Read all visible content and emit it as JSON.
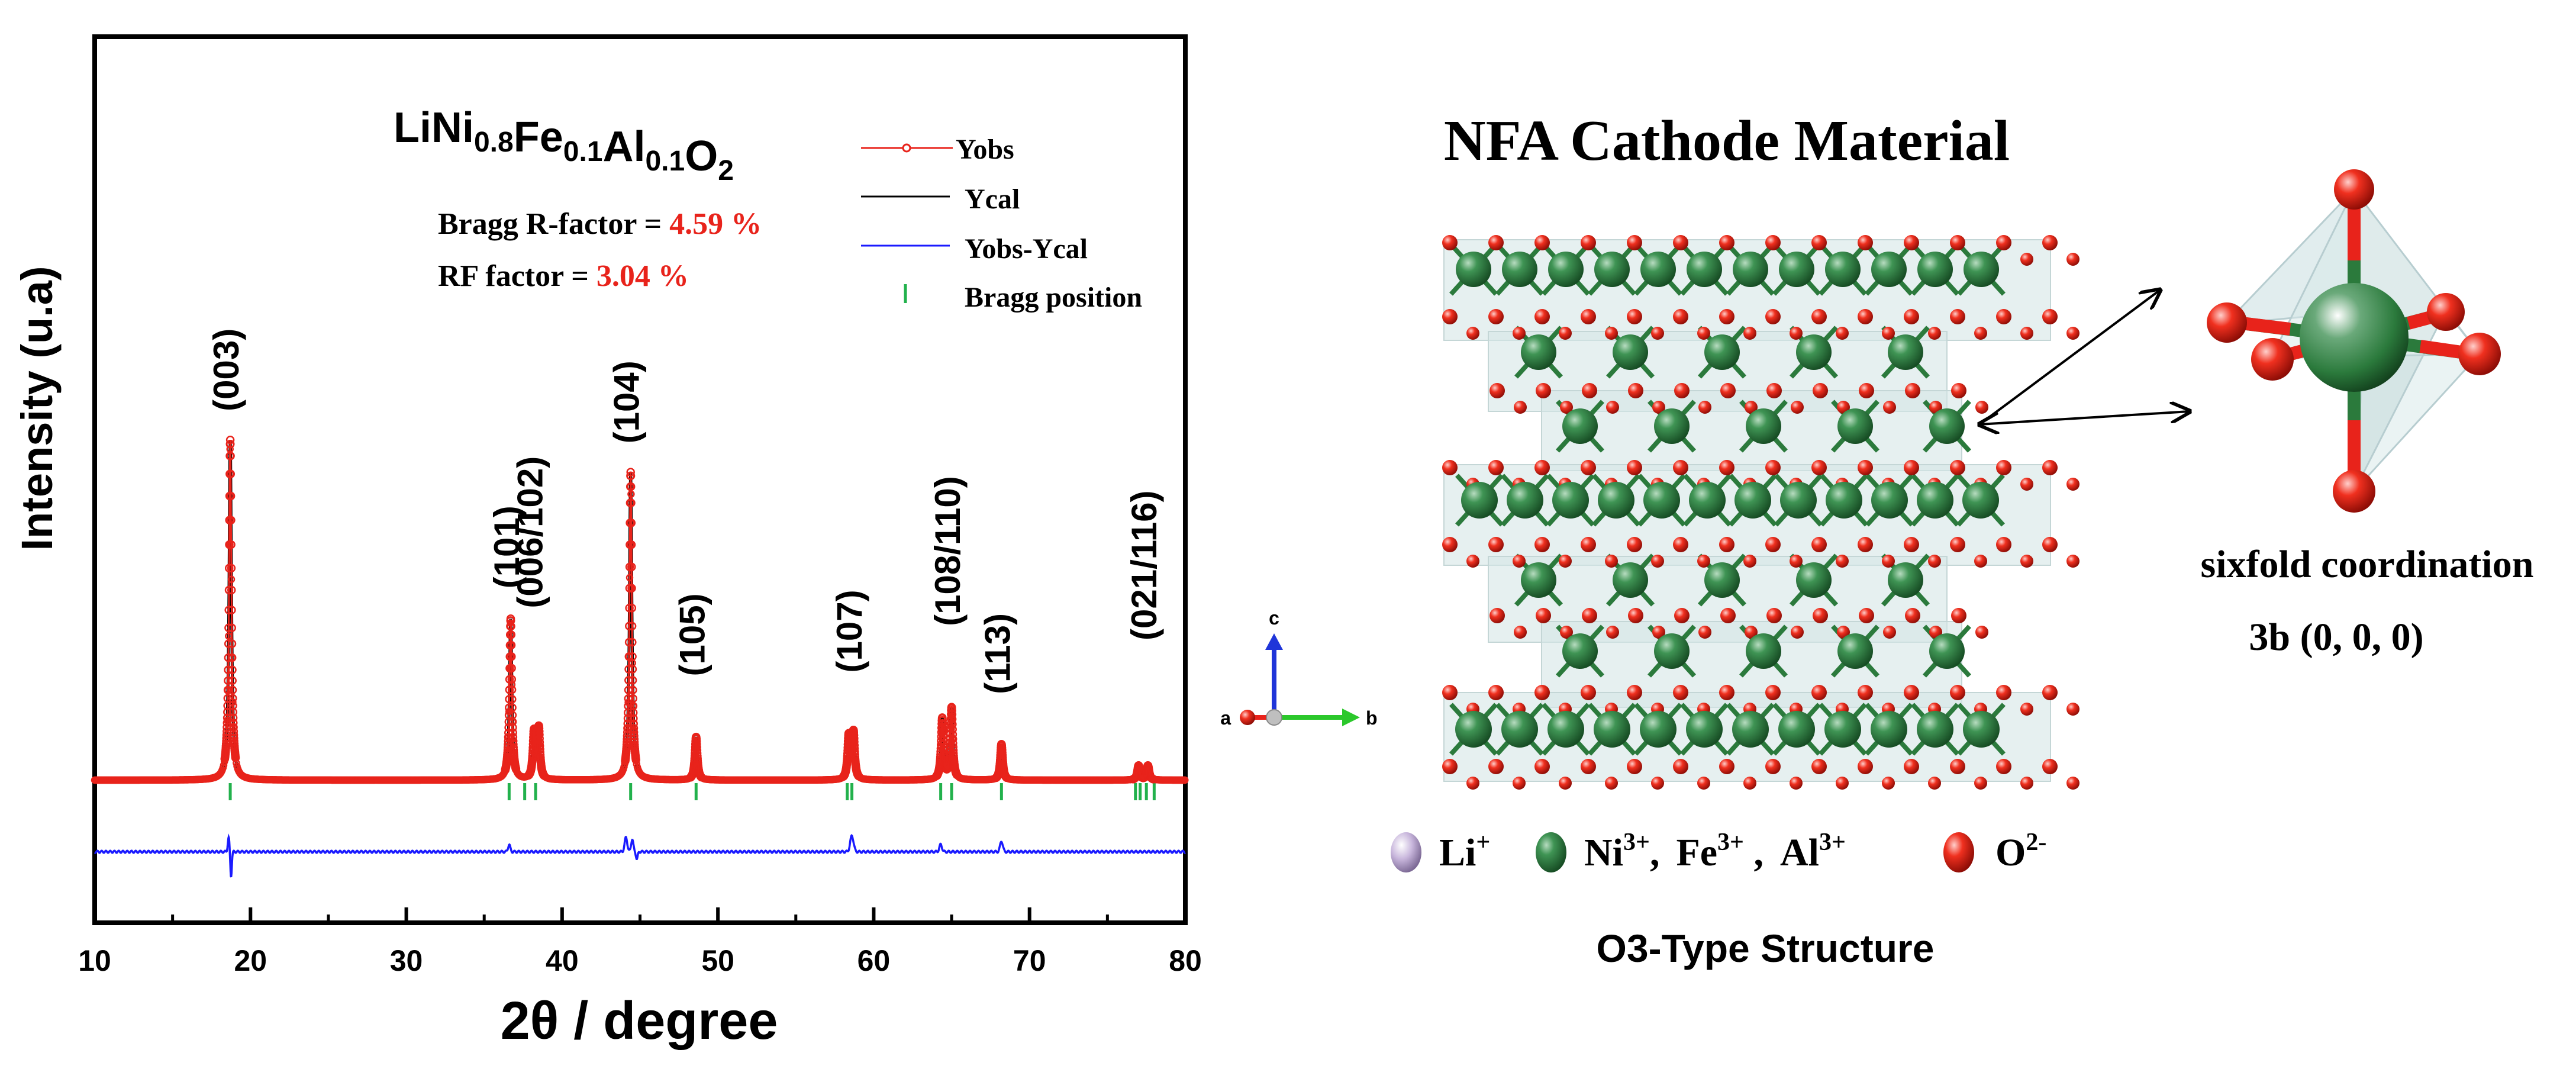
{
  "chart_data": {
    "type": "line",
    "title": "LiNi0.8Fe0.1Al0.1O2",
    "formula": {
      "parts": [
        {
          "t": "LiNi",
          "sub": "0.8"
        },
        {
          "t": "Fe",
          "sub": "0.1"
        },
        {
          "t": "Al",
          "sub": "0.1"
        },
        {
          "t": "O",
          "sub": "2"
        }
      ]
    },
    "xlabel": "2θ / degree",
    "ylabel": "Intensity (u.a)",
    "xlim": [
      10,
      80
    ],
    "xticks": [
      10,
      20,
      30,
      40,
      50,
      60,
      70,
      80
    ],
    "ylim": [
      -0.32,
      1.2
    ],
    "baseline_obs": 0.0,
    "baseline_diff": -0.2,
    "peaks": [
      {
        "x": 18.7,
        "h": 0.95,
        "label": "(003)",
        "label_top": 1.03
      },
      {
        "x": 36.7,
        "h": 0.45,
        "label": "(101)",
        "label_top": 0.535
      },
      {
        "x": 38.2,
        "h": 0.13,
        "label": "(006/102)",
        "label_top": 0.48
      },
      {
        "x": 38.5,
        "h": 0.14,
        "label": "",
        "label_top": 0
      },
      {
        "x": 44.4,
        "h": 0.86,
        "label": "(104)",
        "label_top": 0.94
      },
      {
        "x": 48.6,
        "h": 0.12,
        "label": "(105)",
        "label_top": 0.29
      },
      {
        "x": 58.4,
        "h": 0.12,
        "label": "",
        "label_top": 0
      },
      {
        "x": 58.7,
        "h": 0.13,
        "label": "(107)",
        "label_top": 0.3
      },
      {
        "x": 64.4,
        "h": 0.17,
        "label": "",
        "label_top": 0
      },
      {
        "x": 65.0,
        "h": 0.2,
        "label": "(108/110)",
        "label_top": 0.43
      },
      {
        "x": 68.2,
        "h": 0.1,
        "label": "(113)",
        "label_top": 0.24
      },
      {
        "x": 77.0,
        "h": 0.04,
        "label": "",
        "label_top": 0
      },
      {
        "x": 77.6,
        "h": 0.04,
        "label": "(021/116)",
        "label_top": 0.39
      }
    ],
    "bragg_positions": [
      18.7,
      36.6,
      37.6,
      38.3,
      44.4,
      48.6,
      58.3,
      58.6,
      64.3,
      65.0,
      68.2,
      76.8,
      77.1,
      77.5,
      78.0
    ],
    "diff_features": [
      {
        "x": 18.6,
        "h": 0.04,
        "w": 0.08
      },
      {
        "x": 18.75,
        "h": -0.07,
        "w": 0.07
      },
      {
        "x": 36.6,
        "h": 0.02,
        "w": 0.1
      },
      {
        "x": 44.1,
        "h": 0.04,
        "w": 0.12
      },
      {
        "x": 44.5,
        "h": 0.035,
        "w": 0.1
      },
      {
        "x": 44.8,
        "h": -0.02,
        "w": 0.08
      },
      {
        "x": 58.6,
        "h": 0.045,
        "w": 0.15
      },
      {
        "x": 64.3,
        "h": 0.02,
        "w": 0.12
      },
      {
        "x": 68.2,
        "h": 0.03,
        "w": 0.12
      }
    ],
    "series": [
      {
        "name": "Yobs",
        "color": "#e8231b",
        "marker": "open-circle"
      },
      {
        "name": "Ycal",
        "color": "#000000"
      },
      {
        "name": "Yobs-Ycal",
        "color": "#1a1aff"
      },
      {
        "name": "Bragg position",
        "color": "#22b14c",
        "marker": "vertical-tick"
      }
    ],
    "annotations": {
      "bragg_r": {
        "label": "Bragg R-factor = ",
        "value": "4.59 %"
      },
      "rf": {
        "label": "RF factor = ",
        "value": "3.04 %"
      }
    },
    "legend_position": "top-right"
  },
  "structure": {
    "title": "NFA Cathode Material",
    "subtitle": "O3-Type Structure",
    "axes": {
      "a": "a",
      "b": "b",
      "c": "c"
    },
    "coordination_text": "sixfold coordination",
    "site_text": "3b (0, 0, 0)",
    "legend": [
      {
        "label": "Li",
        "sup": "+",
        "color": "#c4b3d9"
      },
      {
        "label": "Ni",
        "sup": "3+",
        "suffix": ",",
        "color": "#2f7d3e"
      },
      {
        "label": "Fe",
        "sup": "3+",
        "suffix": " ,",
        "color": null
      },
      {
        "label": "Al",
        "sup": "3+",
        "suffix": "",
        "color": null
      },
      {
        "label": "O",
        "sup": "2-",
        "color": "#e8231b"
      }
    ],
    "colors": {
      "green": "#2b7a3c",
      "red": "#e8231b",
      "polyhedron": "#d5e6e6",
      "green_light": "#6fb27c"
    }
  }
}
